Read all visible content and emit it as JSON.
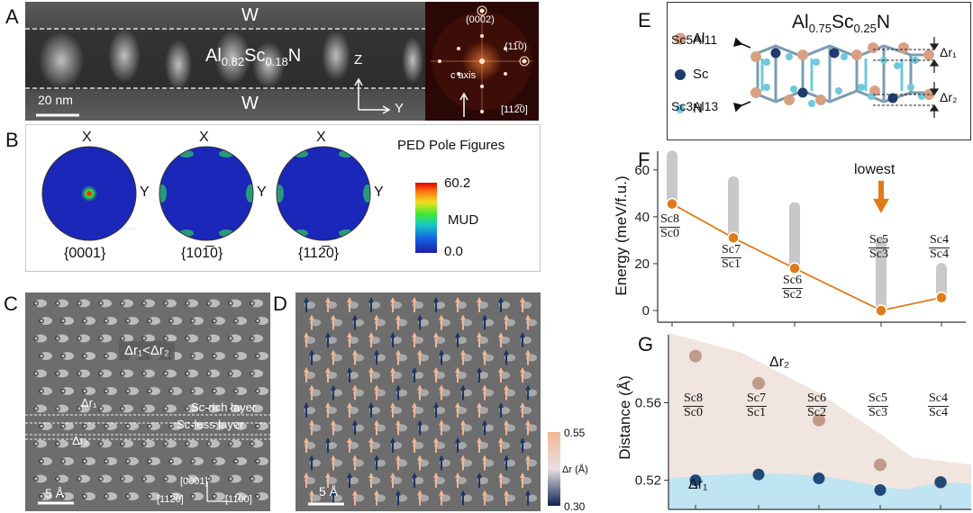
{
  "panel_labels": {
    "a": "A",
    "b": "B",
    "c": "C",
    "d": "D",
    "e": "E",
    "f": "F",
    "g": "G"
  },
  "panel_a": {
    "top_label": "W",
    "bottom_label": "W",
    "material_base": "Al",
    "material_sub1": "0.82",
    "material_mid": "Sc",
    "material_sub2": "0.18",
    "material_end": "N",
    "scalebar": "20 nm",
    "axis_z": "Z",
    "axis_y": "Y",
    "fft_spot1": "(0002)",
    "fft_spot2": "(11̅0)",
    "fft_caxis": "c axis",
    "fft_zone": "[112̅0]"
  },
  "panel_b": {
    "title": "PED Pole Figures",
    "colorbar_max": "60.2",
    "colorbar_min": "0.0",
    "colorbar_label": "MUD",
    "x_label": "X",
    "y_label": "Y",
    "figures": [
      {
        "label": "{0001}"
      },
      {
        "label": "{101̅0}"
      },
      {
        "label": "{112̅0}"
      }
    ]
  },
  "panel_c": {
    "relation": "Δr₁<Δr₂",
    "dr1": "Δr₁",
    "dr2": "Δr₂",
    "sc_rich": "Sc-rich layer",
    "sc_less": "Sc-less layer",
    "dir_0001": "[0001]",
    "dir_1120": "[112̅0]",
    "dir_1100": "[11̅00]",
    "scalebar": "5 Å"
  },
  "panel_d": {
    "scalebar": "5 Å",
    "colorbar_max": "0.55",
    "colorbar_min": "0.30",
    "colorbar_label": "Δr (Å)"
  },
  "panel_e": {
    "title_base": "Al",
    "title_sub1": "0.75",
    "title_mid": "Sc",
    "title_sub2": "0.25",
    "title_end": "N",
    "legend": [
      {
        "label": "Al",
        "color": "#d8a083"
      },
      {
        "label": "Sc",
        "color": "#1f3a6e"
      },
      {
        "label": "N",
        "color": "#6fc8dc"
      }
    ],
    "config_top": "Sc5Al11",
    "config_bottom": "Sc3Al13",
    "dr1": "Δr₁",
    "dr2": "Δr₂"
  },
  "chart_data": [
    {
      "type": "line",
      "ylabel": "Energy (meV/f.u.)",
      "ylim": [
        -5,
        68
      ],
      "yticks": [
        0,
        20,
        40,
        60
      ],
      "categories": [
        {
          "num": "Sc8",
          "den": "Sc0"
        },
        {
          "num": "Sc7",
          "den": "Sc1"
        },
        {
          "num": "Sc6",
          "den": "Sc2"
        },
        {
          "num": "Sc5",
          "den": "Sc3"
        },
        {
          "num": "Sc4",
          "den": "Sc4"
        }
      ],
      "series": [
        {
          "values": [
            45.5,
            31,
            18,
            0,
            5.5
          ],
          "color": "#e07b1a"
        }
      ],
      "gray_ranges": [
        [
          45.5,
          66
        ],
        [
          31,
          55
        ],
        [
          18,
          44
        ],
        [
          0,
          29
        ],
        [
          5.5,
          18
        ]
      ],
      "annotation": "lowest",
      "annotation_color": "#e07b1a"
    },
    {
      "type": "scatter",
      "ylabel": "Distance (Å)",
      "ylim": [
        0.505,
        0.595
      ],
      "yticks": [
        0.52,
        0.56
      ],
      "categories": [
        {
          "num": "Sc8",
          "den": "Sc0"
        },
        {
          "num": "Sc7",
          "den": "Sc1"
        },
        {
          "num": "Sc6",
          "den": "Sc2"
        },
        {
          "num": "Sc5",
          "den": "Sc3"
        },
        {
          "num": "Sc4",
          "den": "Sc4"
        }
      ],
      "series": [
        {
          "name": "Δr₂",
          "values": [
            0.584,
            0.57,
            0.551,
            0.528,
            0.519
          ],
          "color": "#c09a8a",
          "fill": "#f1e5df"
        },
        {
          "name": "Δr₁",
          "values": [
            0.52,
            0.523,
            0.521,
            0.515,
            0.519
          ],
          "color": "#1f4a7a",
          "fill": "#bfe4f2"
        }
      ]
    }
  ]
}
